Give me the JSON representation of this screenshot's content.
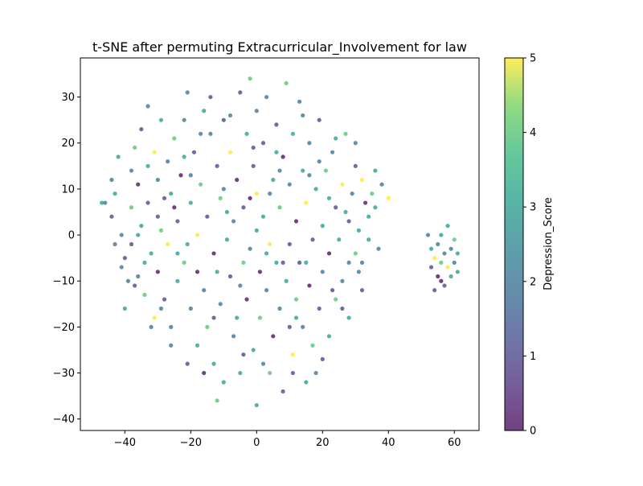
{
  "chart_data": {
    "type": "scatter",
    "title": "t-SNE after permuting Extracurricular_Involvement for law",
    "xlabel": "",
    "ylabel": "",
    "xlim": [
      -53.5,
      67.5
    ],
    "ylim": [
      -42.5,
      38.5
    ],
    "xticks": [
      -40,
      -20,
      0,
      20,
      40,
      60
    ],
    "yticks": [
      -40,
      -30,
      -20,
      -10,
      0,
      10,
      20,
      30
    ],
    "grid": false,
    "colorbar": {
      "label": "Depression_Score",
      "range": [
        0,
        5
      ],
      "ticks": [
        0,
        1,
        2,
        3,
        4,
        5
      ],
      "colormap": "viridis"
    },
    "marker_opacity": 0.75,
    "points": [
      [
        -46,
        7,
        2
      ],
      [
        -47,
        7,
        3
      ],
      [
        -44,
        12,
        2
      ],
      [
        -44,
        4,
        1
      ],
      [
        -43,
        -2,
        2
      ],
      [
        -42,
        17,
        3
      ],
      [
        -41,
        0,
        2
      ],
      [
        -40,
        -5,
        1
      ],
      [
        -40,
        -16,
        3
      ],
      [
        -39,
        -10,
        2
      ],
      [
        -38,
        6,
        4
      ],
      [
        -38,
        -2,
        1
      ],
      [
        -37,
        19,
        4
      ],
      [
        -36,
        11,
        0
      ],
      [
        -36,
        -9,
        2
      ],
      [
        -35,
        23,
        1
      ],
      [
        -35,
        2,
        3
      ],
      [
        -34,
        -13,
        4
      ],
      [
        -33,
        28,
        2
      ],
      [
        -33,
        7,
        1
      ],
      [
        -32,
        -4,
        3
      ],
      [
        -31,
        18,
        5
      ],
      [
        -31,
        -18,
        5
      ],
      [
        -30,
        12,
        2
      ],
      [
        -30,
        -8,
        0
      ],
      [
        -29,
        25,
        3
      ],
      [
        -29,
        1,
        4
      ],
      [
        -28,
        -14,
        1
      ],
      [
        -27,
        16,
        2
      ],
      [
        -27,
        -2,
        5
      ],
      [
        -26,
        9,
        3
      ],
      [
        -26,
        -20,
        2
      ],
      [
        -25,
        21,
        4
      ],
      [
        -24,
        3,
        1
      ],
      [
        -24,
        -10,
        3
      ],
      [
        -23,
        13,
        0
      ],
      [
        -22,
        -6,
        4
      ],
      [
        -22,
        25,
        2
      ],
      [
        -21,
        31,
        2
      ],
      [
        -21,
        -28,
        1
      ],
      [
        -20,
        7,
        3
      ],
      [
        -20,
        -16,
        2
      ],
      [
        -19,
        18,
        1
      ],
      [
        -18,
        0,
        5
      ],
      [
        -18,
        -24,
        3
      ],
      [
        -17,
        11,
        4
      ],
      [
        -16,
        -12,
        2
      ],
      [
        -16,
        27,
        3
      ],
      [
        -15,
        4,
        1
      ],
      [
        -15,
        -20,
        4
      ],
      [
        -14,
        22,
        2
      ],
      [
        -13,
        -4,
        0
      ],
      [
        -13,
        -28,
        3
      ],
      [
        -12,
        15,
        1
      ],
      [
        -11,
        8,
        4
      ],
      [
        -11,
        -15,
        2
      ],
      [
        -10,
        -32,
        3
      ],
      [
        -10,
        25,
        1
      ],
      [
        -9,
        -1,
        3
      ],
      [
        -8,
        -9,
        1
      ],
      [
        -8,
        18,
        5
      ],
      [
        -7,
        3,
        2
      ],
      [
        -7,
        -22,
        2
      ],
      [
        -6,
        12,
        0
      ],
      [
        -5,
        31,
        1
      ],
      [
        -5,
        -30,
        3
      ],
      [
        -4,
        -6,
        4
      ],
      [
        -4,
        6,
        1
      ],
      [
        -3,
        22,
        3
      ],
      [
        -3,
        -14,
        0
      ],
      [
        -2,
        34,
        4
      ],
      [
        -2,
        -3,
        2
      ],
      [
        -1,
        15,
        1
      ],
      [
        -1,
        -25,
        3
      ],
      [
        0,
        -37,
        3
      ],
      [
        0,
        9,
        5
      ],
      [
        0,
        27,
        2
      ],
      [
        1,
        -8,
        0
      ],
      [
        1,
        -18,
        4
      ],
      [
        2,
        4,
        3
      ],
      [
        2,
        20,
        1
      ],
      [
        3,
        -12,
        2
      ],
      [
        3,
        30,
        2
      ],
      [
        4,
        -2,
        5
      ],
      [
        4,
        -30,
        4
      ],
      [
        5,
        12,
        3
      ],
      [
        5,
        -22,
        0
      ],
      [
        6,
        24,
        1
      ],
      [
        6,
        -6,
        3
      ],
      [
        7,
        -16,
        2
      ],
      [
        7,
        6,
        4
      ],
      [
        8,
        -34,
        1
      ],
      [
        8,
        17,
        0
      ],
      [
        9,
        33,
        4
      ],
      [
        9,
        -10,
        3
      ],
      [
        10,
        -2,
        1
      ],
      [
        10,
        11,
        2
      ],
      [
        11,
        -26,
        5
      ],
      [
        11,
        22,
        3
      ],
      [
        12,
        -14,
        4
      ],
      [
        12,
        3,
        0
      ],
      [
        13,
        29,
        2
      ],
      [
        13,
        -6,
        1
      ],
      [
        14,
        14,
        3
      ],
      [
        14,
        -20,
        2
      ],
      [
        15,
        -32,
        3
      ],
      [
        15,
        7,
        5
      ],
      [
        16,
        -11,
        0
      ],
      [
        16,
        20,
        2
      ],
      [
        17,
        -1,
        1
      ],
      [
        17,
        -24,
        4
      ],
      [
        18,
        10,
        3
      ],
      [
        19,
        -16,
        1
      ],
      [
        19,
        25,
        1
      ],
      [
        20,
        2,
        3
      ],
      [
        20,
        -8,
        2
      ],
      [
        21,
        14,
        4
      ],
      [
        22,
        -4,
        0
      ],
      [
        22,
        -22,
        3
      ],
      [
        23,
        18,
        2
      ],
      [
        24,
        6,
        1
      ],
      [
        24,
        -14,
        4
      ],
      [
        25,
        -1,
        3
      ],
      [
        26,
        11,
        5
      ],
      [
        26,
        -10,
        2
      ],
      [
        27,
        22,
        4
      ],
      [
        28,
        3,
        1
      ],
      [
        28,
        -18,
        3
      ],
      [
        29,
        9,
        2
      ],
      [
        30,
        -4,
        4
      ],
      [
        30,
        15,
        1
      ],
      [
        31,
        1,
        3
      ],
      [
        32,
        12,
        5
      ],
      [
        32,
        -6,
        2
      ],
      [
        33,
        7,
        0
      ],
      [
        34,
        -1,
        3
      ],
      [
        35,
        9,
        4
      ],
      [
        36,
        14,
        3
      ],
      [
        37,
        -3,
        2
      ],
      [
        40,
        8,
        5
      ],
      [
        -38,
        14,
        2
      ],
      [
        -34,
        -6,
        3
      ],
      [
        -30,
        4,
        1
      ],
      [
        -26,
        -24,
        2
      ],
      [
        -22,
        17,
        3
      ],
      [
        -18,
        -8,
        0
      ],
      [
        -14,
        30,
        1
      ],
      [
        -12,
        -36,
        4
      ],
      [
        -10,
        10,
        2
      ],
      [
        -6,
        -18,
        3
      ],
      [
        -2,
        8,
        0
      ],
      [
        2,
        -28,
        2
      ],
      [
        6,
        18,
        3
      ],
      [
        10,
        -20,
        1
      ],
      [
        14,
        26,
        2
      ],
      [
        18,
        -30,
        2
      ],
      [
        22,
        8,
        3
      ],
      [
        26,
        -16,
        1
      ],
      [
        30,
        20,
        2
      ],
      [
        34,
        4,
        3
      ],
      [
        -43,
        9,
        3
      ],
      [
        -41,
        -7,
        2
      ],
      [
        -37,
        -11,
        1
      ],
      [
        -33,
        15,
        3
      ],
      [
        -29,
        -16,
        2
      ],
      [
        -25,
        6,
        0
      ],
      [
        -21,
        -2,
        3
      ],
      [
        -17,
        22,
        2
      ],
      [
        -13,
        -18,
        1
      ],
      [
        -9,
        5,
        3
      ],
      [
        -5,
        -11,
        2
      ],
      [
        -1,
        19,
        1
      ],
      [
        3,
        -4,
        3
      ],
      [
        7,
        14,
        2
      ],
      [
        11,
        -30,
        1
      ],
      [
        15,
        -6,
        3
      ],
      [
        19,
        16,
        2
      ],
      [
        23,
        -12,
        1
      ],
      [
        27,
        5,
        3
      ],
      [
        31,
        -8,
        2
      ],
      [
        -36,
        0,
        3
      ],
      [
        -32,
        -20,
        2
      ],
      [
        -28,
        8,
        1
      ],
      [
        -24,
        -4,
        3
      ],
      [
        -20,
        13,
        2
      ],
      [
        -16,
        -30,
        0
      ],
      [
        -12,
        -8,
        3
      ],
      [
        -8,
        26,
        2
      ],
      [
        -4,
        -26,
        1
      ],
      [
        0,
        1,
        3
      ],
      [
        4,
        9,
        2
      ],
      [
        8,
        -6,
        1
      ],
      [
        12,
        -18,
        3
      ],
      [
        16,
        13,
        2
      ],
      [
        20,
        -27,
        1
      ],
      [
        24,
        21,
        3
      ],
      [
        28,
        -6,
        2
      ],
      [
        32,
        -12,
        1
      ],
      [
        36,
        6,
        3
      ],
      [
        38,
        11,
        2
      ],
      [
        52,
        0,
        2
      ],
      [
        53,
        -3,
        3
      ],
      [
        53,
        -7,
        1
      ],
      [
        54,
        -5,
        5
      ],
      [
        55,
        -2,
        2
      ],
      [
        55,
        -9,
        0
      ],
      [
        56,
        -6,
        4
      ],
      [
        56,
        0,
        3
      ],
      [
        57,
        -4,
        2
      ],
      [
        57,
        -11,
        1
      ],
      [
        58,
        2,
        3
      ],
      [
        58,
        -7,
        5
      ],
      [
        59,
        -3,
        2
      ],
      [
        59,
        -9,
        3
      ],
      [
        60,
        -1,
        4
      ],
      [
        60,
        -6,
        2
      ],
      [
        61,
        -4,
        3
      ],
      [
        61,
        -8,
        3
      ],
      [
        54,
        -12,
        1
      ],
      [
        56,
        -10,
        0
      ]
    ]
  }
}
